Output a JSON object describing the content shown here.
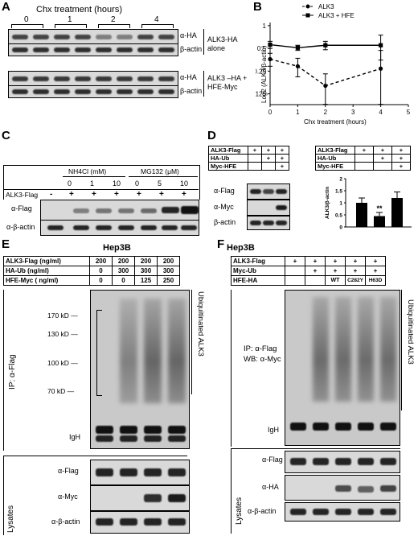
{
  "panelA": {
    "letter": "A",
    "title": "Chx treatment (hours)",
    "timepoints": [
      "0",
      "1",
      "2",
      "4"
    ],
    "rows": [
      "α-HA",
      "β-actin",
      "α-HA",
      "β-actin"
    ],
    "group1": "ALK3-HA alone",
    "group2": "ALK3 –HA + HFE-Myc"
  },
  "panelB": {
    "letter": "B",
    "legend": [
      "ALK3",
      "ALK3 + HFE"
    ],
    "ylabel": "Log2 (ALK3/β-actin)",
    "xlabel": "Chx treatment (hours)",
    "yticks": [
      "1",
      "0.5",
      "0.25",
      "0.125"
    ],
    "xticks": [
      "0",
      "1",
      "2",
      "3",
      "4",
      "5"
    ]
  },
  "chart_data": [
    {
      "type": "line",
      "xlabel": "Chx treatment (hours)",
      "ylabel": "Log2 (ALK3/β-actin)",
      "xlim": [
        0,
        5
      ],
      "ylim": [
        0.09,
        1.1
      ],
      "yscale": "log2",
      "x": [
        0,
        1,
        2,
        4
      ],
      "series": [
        {
          "name": "ALK3",
          "values": [
            0.36,
            0.29,
            0.16,
            0.27
          ],
          "err": [
            0.07,
            0.08,
            0.07,
            0.2
          ]
        },
        {
          "name": "ALK3 + HFE",
          "values": [
            0.56,
            0.51,
            0.55,
            0.55
          ],
          "err": [
            0.06,
            0.04,
            0.07,
            0.2
          ]
        }
      ]
    },
    {
      "type": "bar",
      "ylabel": "ALK3/β-actin",
      "ylim": [
        0,
        2
      ],
      "yticks": [
        "0",
        "0.5",
        "1",
        "1.5",
        "2"
      ],
      "categories": [
        "1",
        "2",
        "3"
      ],
      "values": [
        1.0,
        0.45,
        1.2
      ],
      "err": [
        0.2,
        0.15,
        0.25
      ],
      "annotation": "**"
    }
  ],
  "panelC": {
    "letter": "C",
    "groups": [
      "NH4Cl (mM)",
      "MG132 (μM)"
    ],
    "doses": [
      "0",
      "1",
      "10",
      "0",
      "5",
      "10"
    ],
    "rowlabel": "ALK3-Flag",
    "signs": [
      "-",
      "+",
      "+",
      "+",
      "+",
      "+",
      "+"
    ],
    "blots": [
      "α-Flag",
      "α-β-actin"
    ]
  },
  "panelD": {
    "letter": "D",
    "rows": [
      "ALK3-Flag",
      "HA-Ub",
      "Myc-HFE"
    ],
    "signs": [
      [
        "+",
        "+",
        "+"
      ],
      [
        "",
        "+",
        "+"
      ],
      [
        "",
        "",
        "+"
      ]
    ],
    "blots": [
      "α-Flag",
      "α-Myc",
      "β-actin"
    ],
    "bar_signs": [
      [
        "+",
        "+",
        "+"
      ],
      [
        "",
        "+",
        "+"
      ],
      [
        "",
        "",
        "+"
      ]
    ],
    "bar_ylabel": "ALK3/β-actin",
    "stars": "**"
  },
  "panelE": {
    "letter": "E",
    "title": "Hep3B",
    "rows": [
      {
        "label": "ALK3-Flag (ng/ml)",
        "vals": [
          "200",
          "200",
          "200",
          "200"
        ]
      },
      {
        "label": "HA-Ub (ng/ml)",
        "vals": [
          "0",
          "300",
          "300",
          "300"
        ]
      },
      {
        "label": "HFE-Myc ( ng/ml)",
        "vals": [
          "0",
          "0",
          "125",
          "250"
        ]
      }
    ],
    "markers": [
      "170 kD",
      "130 kD",
      "100 kD",
      "70 kD"
    ],
    "igh": "IgH",
    "ip": "IP: α-Flag",
    "ubi": "Ubiquitinated ALK3",
    "lysates": "Lysates",
    "lys_rows": [
      "α-Flag",
      "α-Myc",
      "α-β-actin"
    ]
  },
  "panelF": {
    "letter": "F",
    "title": "Hep3B",
    "rows": [
      {
        "label": "ALK3-Flag",
        "vals": [
          "+",
          "+",
          "+",
          "+",
          "+"
        ]
      },
      {
        "label": "Myc-Ub",
        "vals": [
          "",
          "+",
          "+",
          "+",
          "+"
        ]
      },
      {
        "label": "HFE-HA",
        "vals": [
          "",
          "",
          "WT",
          "C282Y",
          "H63D"
        ]
      }
    ],
    "ip1": "IP: α-Flag",
    "ip2": "WB: α-Myc",
    "igh": "IgH",
    "ubi": "Ubiquitinated ALK3",
    "lysates": "Lysates",
    "lys_rows": [
      "α-Flag",
      "α-HA",
      "α-β-actin"
    ]
  }
}
